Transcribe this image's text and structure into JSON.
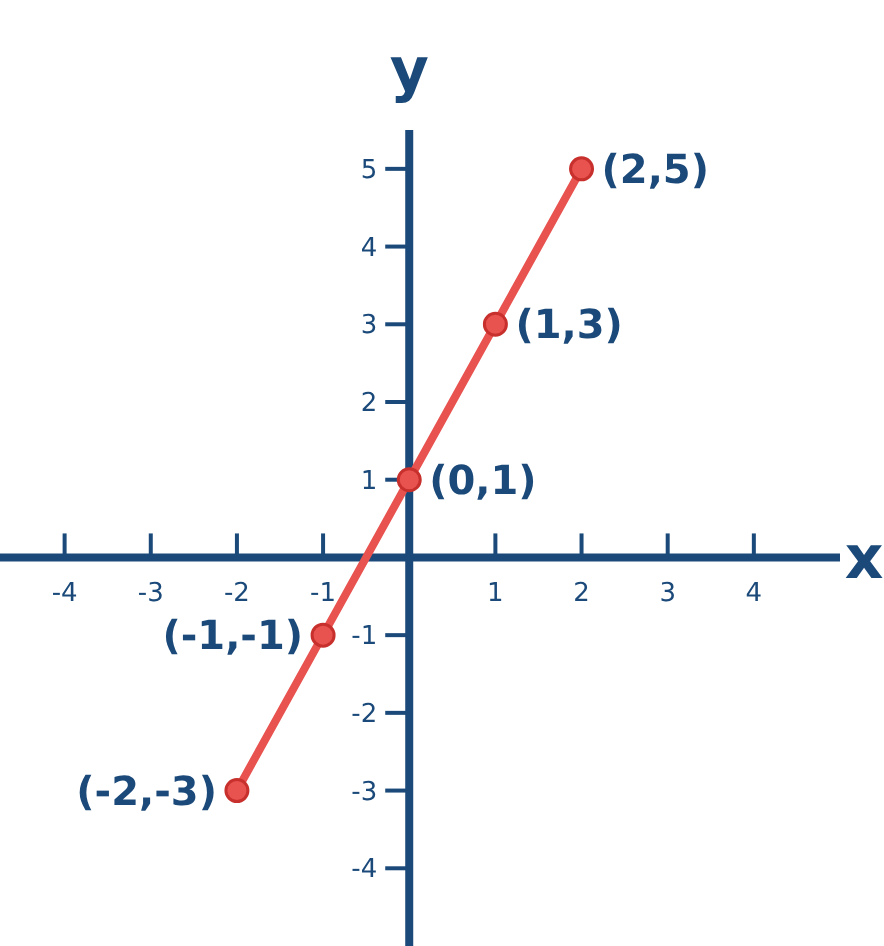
{
  "chart_data": {
    "type": "line",
    "xlabel": "x",
    "ylabel": "y",
    "x": [
      -2,
      -1,
      0,
      1,
      2
    ],
    "series": [
      {
        "color": "#e8524f",
        "values": [
          -3,
          -1,
          1,
          3,
          5
        ]
      }
    ],
    "xlim": [
      -4.75,
      5
    ],
    "ylim": [
      -5,
      5.5
    ],
    "xticks": [
      -4,
      -3,
      -2,
      -1,
      1,
      2,
      3,
      4
    ],
    "yticks": [
      -4,
      -3,
      -2,
      -1,
      1,
      2,
      3,
      4,
      5
    ],
    "marker": "circle",
    "line_style": "solid",
    "annotations": [
      {
        "text": "(-2,-3)",
        "x": -2,
        "y": -3
      },
      {
        "text": "(-1,-1)",
        "x": -1,
        "y": -1
      },
      {
        "text": "(0,1)",
        "x": 0,
        "y": 1
      },
      {
        "text": "(1,3)",
        "x": 1,
        "y": 3
      },
      {
        "text": "(2,5)",
        "x": 2,
        "y": 5
      }
    ]
  }
}
